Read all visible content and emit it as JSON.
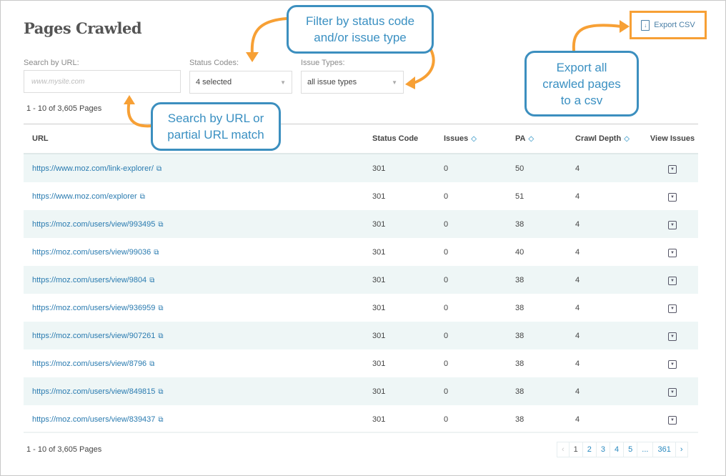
{
  "page": {
    "title": "Pages Crawled",
    "export_label": "Export CSV"
  },
  "filters": {
    "search_label": "Search by URL:",
    "search_placeholder": "www.mysite.com",
    "search_value": "",
    "status_label": "Status Codes:",
    "status_value": "4 selected",
    "issue_label": "Issue Types:",
    "issue_value": "all issue types"
  },
  "count_text": "1 - 10 of 3,605 Pages",
  "table": {
    "headers": [
      "URL",
      "Status Code",
      "Issues",
      "PA",
      "Crawl Depth",
      "View Issues"
    ],
    "rows": [
      {
        "url": "https://www.moz.com/link-explorer/",
        "status": "301",
        "issues": "0",
        "pa": "50",
        "depth": "4"
      },
      {
        "url": "https://www.moz.com/explorer",
        "status": "301",
        "issues": "0",
        "pa": "51",
        "depth": "4"
      },
      {
        "url": "https://moz.com/users/view/993495",
        "status": "301",
        "issues": "0",
        "pa": "38",
        "depth": "4"
      },
      {
        "url": "https://moz.com/users/view/99036",
        "status": "301",
        "issues": "0",
        "pa": "40",
        "depth": "4"
      },
      {
        "url": "https://moz.com/users/view/9804",
        "status": "301",
        "issues": "0",
        "pa": "38",
        "depth": "4"
      },
      {
        "url": "https://moz.com/users/view/936959",
        "status": "301",
        "issues": "0",
        "pa": "38",
        "depth": "4"
      },
      {
        "url": "https://moz.com/users/view/907261",
        "status": "301",
        "issues": "0",
        "pa": "38",
        "depth": "4"
      },
      {
        "url": "https://moz.com/users/view/8796",
        "status": "301",
        "issues": "0",
        "pa": "38",
        "depth": "4"
      },
      {
        "url": "https://moz.com/users/view/849815",
        "status": "301",
        "issues": "0",
        "pa": "38",
        "depth": "4"
      },
      {
        "url": "https://moz.com/users/view/839437",
        "status": "301",
        "issues": "0",
        "pa": "38",
        "depth": "4"
      }
    ]
  },
  "pagination": {
    "pages": [
      "1",
      "2",
      "3",
      "4",
      "5",
      "...",
      "361"
    ],
    "current": "1"
  },
  "callouts": {
    "filter": "Filter by status code\nand/or issue type",
    "search": "Search by URL or\npartial URL match",
    "export": "Export all\ncrawled pages\nto a csv"
  },
  "colors": {
    "accent": "#2a7bb0",
    "annotation_orange": "#f7a035",
    "annotation_blue": "#3c8fbf",
    "row_alt": "#eef6f6"
  }
}
